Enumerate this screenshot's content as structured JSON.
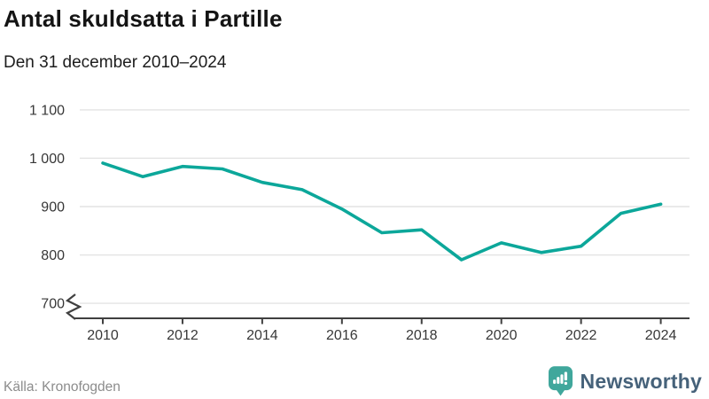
{
  "header": {
    "title": "Antal skuldsatta i Partille",
    "subtitle": "Den 31 december 2010–2024"
  },
  "footer": {
    "source": "Källa: Kronofogden",
    "brand": "Newsworthy"
  },
  "colors": {
    "line": "#0ca79a",
    "grid": "#e3e3e3",
    "axis": "#404040",
    "tick_label": "#383838",
    "source_text": "#8c8c8c",
    "brand_text": "#46627a",
    "brand_icon": "#40a79c"
  },
  "chart_data": {
    "type": "line",
    "title": "Antal skuldsatta i Partille",
    "subtitle": "Den 31 december 2010–2024",
    "x": [
      2010,
      2011,
      2012,
      2013,
      2014,
      2015,
      2016,
      2017,
      2018,
      2019,
      2020,
      2021,
      2022,
      2023,
      2024
    ],
    "series": [
      {
        "name": "Antal skuldsatta",
        "values": [
          990,
          962,
          983,
          978,
          950,
          935,
          895,
          846,
          852,
          790,
          825,
          805,
          818,
          886,
          905
        ]
      }
    ],
    "xlabel": "",
    "ylabel": "",
    "ylim": [
      700,
      1100
    ],
    "yticks": [
      700,
      800,
      900,
      1000,
      1100
    ],
    "ytick_labels": [
      "700",
      "800",
      "900",
      "1 000",
      "1 100"
    ],
    "xticks": [
      2010,
      2012,
      2014,
      2016,
      2018,
      2020,
      2022,
      2024
    ],
    "grid": true,
    "legend_position": "none",
    "axis_break": true
  }
}
